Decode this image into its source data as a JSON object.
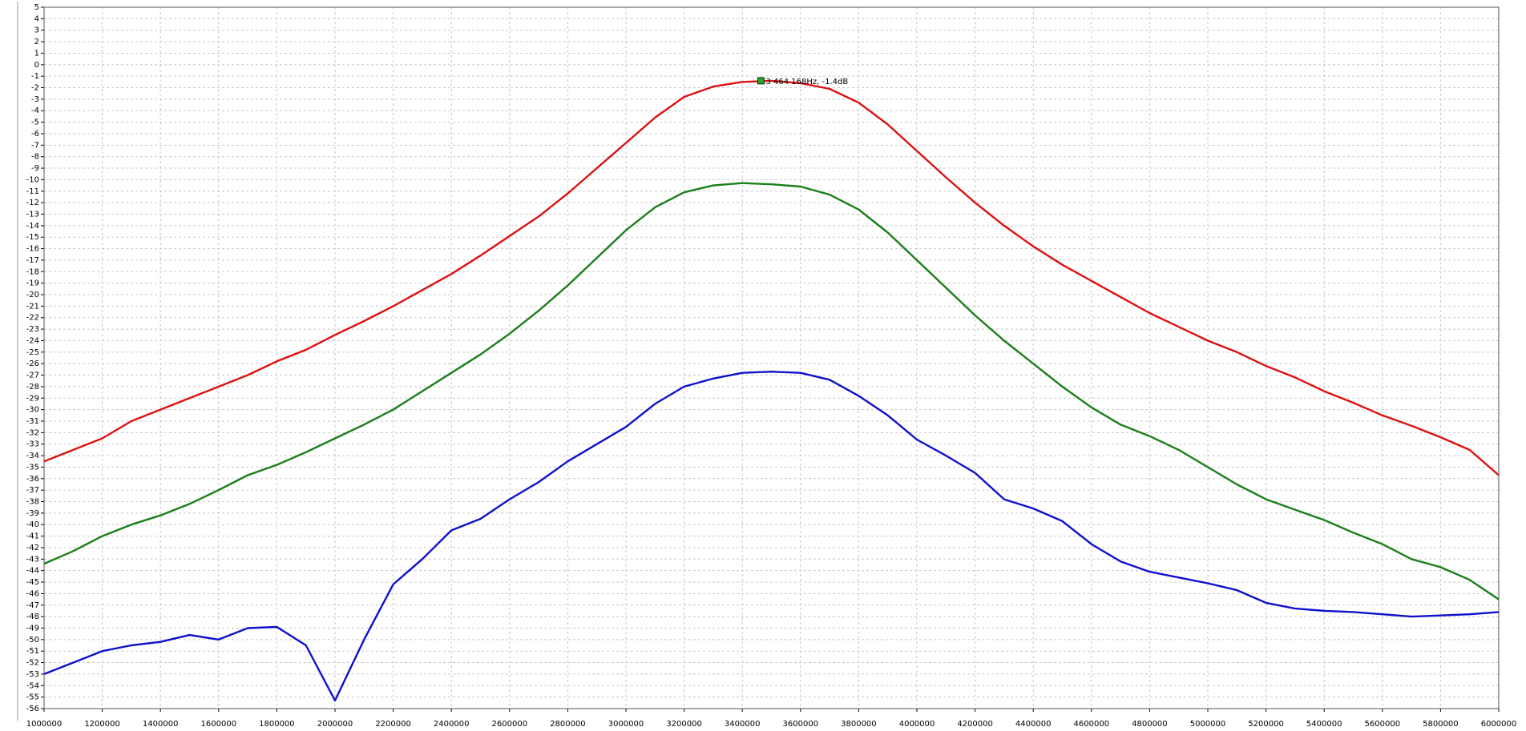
{
  "chart_data": {
    "type": "line",
    "x": [
      1000000,
      1100000,
      1200000,
      1300000,
      1400000,
      1500000,
      1600000,
      1700000,
      1800000,
      1900000,
      2000000,
      2100000,
      2200000,
      2300000,
      2400000,
      2500000,
      2600000,
      2700000,
      2800000,
      2900000,
      3000000,
      3100000,
      3200000,
      3300000,
      3400000,
      3500000,
      3600000,
      3700000,
      3800000,
      3900000,
      4000000,
      4100000,
      4200000,
      4300000,
      4400000,
      4500000,
      4600000,
      4700000,
      4800000,
      4900000,
      5000000,
      5100000,
      5200000,
      5300000,
      5400000,
      5500000,
      5600000,
      5700000,
      5800000,
      5900000,
      6000000
    ],
    "series": [
      {
        "color": "#dd1111",
        "values": [
          -34.5,
          -33.5,
          -32.5,
          -31,
          -30,
          -29,
          -28,
          -27,
          -25.8,
          -24.8,
          -23.5,
          -22.3,
          -21,
          -19.6,
          -18.2,
          -16.6,
          -14.9,
          -13.2,
          -11.2,
          -9,
          -6.8,
          -4.6,
          -2.8,
          -1.9,
          -1.5,
          -1.4,
          -1.6,
          -2.1,
          -3.3,
          -5.2,
          -7.5,
          -9.8,
          -12,
          -14,
          -15.8,
          -17.4,
          -18.8,
          -20.2,
          -21.6,
          -22.8,
          -24,
          -25,
          -26.2,
          -27.2,
          -28.4,
          -29.4,
          -30.5,
          -31.4,
          -32.4,
          -33.5,
          -35.7
        ]
      },
      {
        "color": "#1a7f1a",
        "values": [
          -43.4,
          -42.3,
          -41,
          -40,
          -39.2,
          -38.2,
          -37,
          -35.7,
          -34.8,
          -33.7,
          -32.5,
          -31.3,
          -30,
          -28.4,
          -26.8,
          -25.2,
          -23.4,
          -21.4,
          -19.2,
          -16.8,
          -14.4,
          -12.4,
          -11.1,
          -10.5,
          -10.3,
          -10.4,
          -10.6,
          -11.3,
          -12.6,
          -14.6,
          -17,
          -19.4,
          -21.8,
          -24,
          -26,
          -28,
          -29.8,
          -31.3,
          -32.3,
          -33.5,
          -35,
          -36.5,
          -37.8,
          -38.7,
          -39.6,
          -40.7,
          -41.7,
          -43,
          -43.7,
          -44.8,
          -46.5
        ]
      },
      {
        "color": "#1010cc",
        "values": [
          -53,
          -52,
          -51,
          -50.5,
          -50.2,
          -49.6,
          -50,
          -49,
          -48.9,
          -50.5,
          -55.3,
          -50,
          -45.2,
          -43,
          -40.5,
          -39.5,
          -37.8,
          -36.3,
          -34.5,
          -33,
          -31.5,
          -29.5,
          -28,
          -27.3,
          -26.8,
          -26.7,
          -26.8,
          -27.4,
          -28.8,
          -30.5,
          -32.6,
          -34,
          -35.5,
          -37.8,
          -38.6,
          -39.7,
          -41.7,
          -43.2,
          -44.1,
          -44.6,
          -45.1,
          -45.7,
          -46.8,
          -47.3,
          -47.5,
          -47.6,
          -47.8,
          -48,
          -47.9,
          -47.8,
          -47.6
        ]
      }
    ],
    "annotation": {
      "text": "3 464 168Hz, -1.4dB",
      "x": 3464168,
      "y": -1.4,
      "color": "#22aa22"
    },
    "xlim": [
      1000000,
      6000000
    ],
    "ylim": [
      -56,
      5
    ],
    "xticks": [
      1000000,
      1200000,
      1400000,
      1600000,
      1800000,
      2000000,
      2200000,
      2400000,
      2600000,
      2800000,
      3000000,
      3200000,
      3400000,
      3600000,
      3800000,
      4000000,
      4200000,
      4400000,
      4600000,
      4800000,
      5000000,
      5200000,
      5400000,
      5600000,
      5800000,
      6000000
    ],
    "yticks": [
      5,
      4,
      3,
      2,
      1,
      0,
      -1,
      -2,
      -3,
      -4,
      -5,
      -6,
      -7,
      -8,
      -9,
      -10,
      -11,
      -12,
      -13,
      -14,
      -15,
      -16,
      -17,
      -18,
      -19,
      -20,
      -21,
      -22,
      -23,
      -24,
      -25,
      -26,
      -27,
      -28,
      -29,
      -30,
      -31,
      -32,
      -33,
      -34,
      -35,
      -36,
      -37,
      -38,
      -39,
      -40,
      -41,
      -42,
      -43,
      -44,
      -45,
      -46,
      -47,
      -48,
      -49,
      -50,
      -51,
      -52,
      -53,
      -54,
      -55,
      -56
    ],
    "grid": true
  }
}
